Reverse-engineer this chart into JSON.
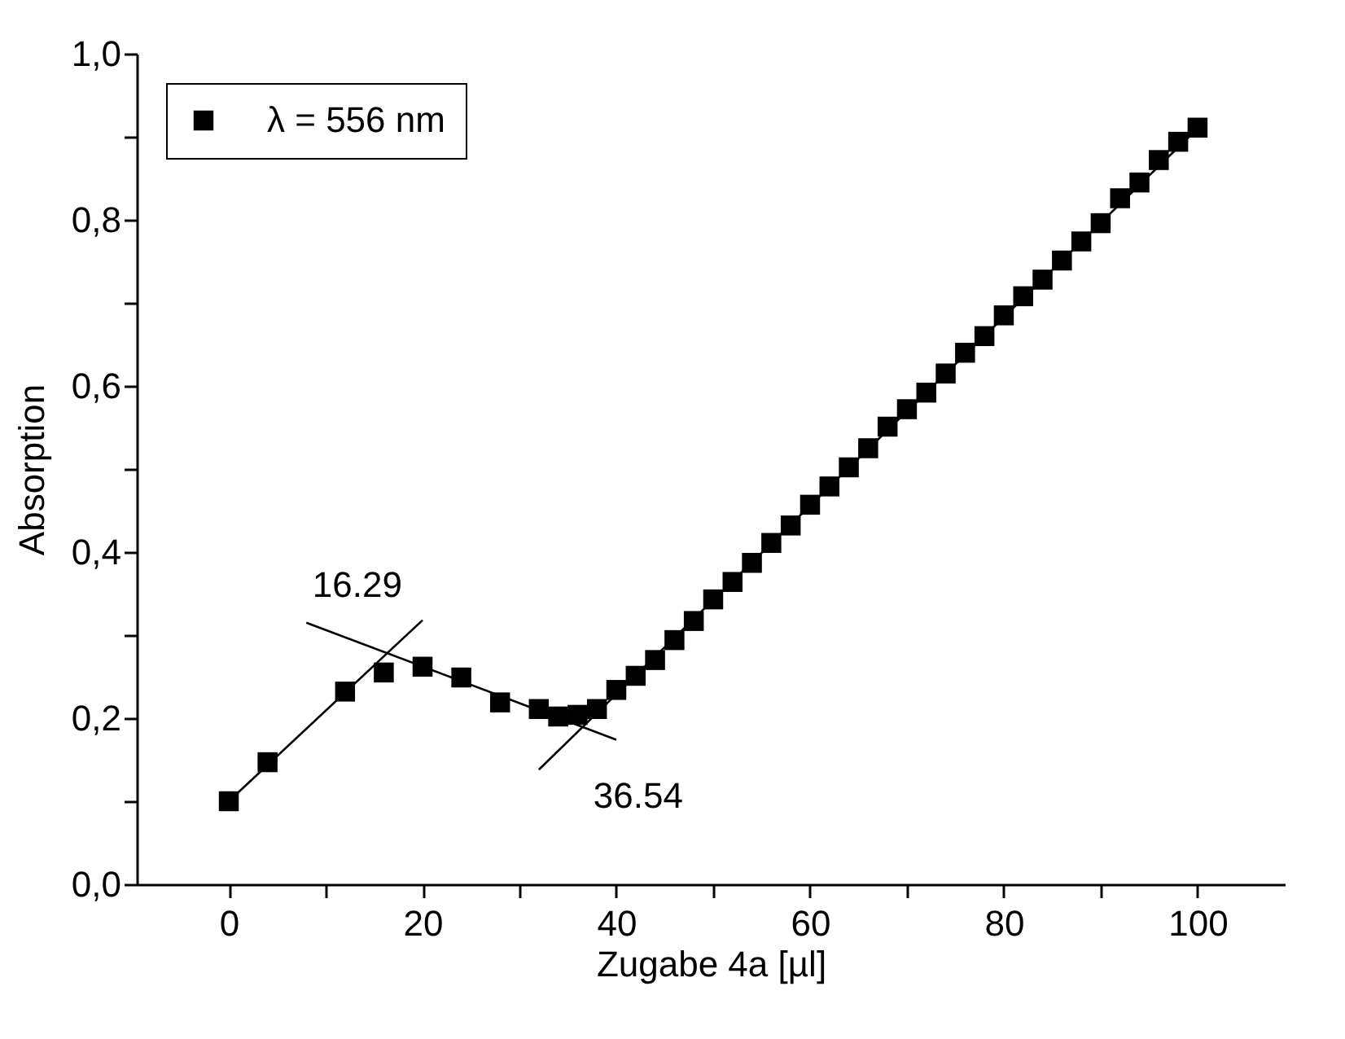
{
  "chart_data": {
    "type": "scatter",
    "xlabel": "Zugabe 4a [µl]",
    "ylabel": "Absorption",
    "xlim": [
      -9.5,
      109
    ],
    "ylim": [
      0,
      1.0
    ],
    "xticks": [
      0,
      {
        "value": 10,
        "label": null
      },
      20,
      {
        "value": 30,
        "label": null
      },
      40,
      {
        "value": 50,
        "label": null
      },
      60,
      {
        "value": 70,
        "label": null
      },
      80,
      {
        "value": 90,
        "label": null
      },
      100
    ],
    "yticks": [
      {
        "value": 0,
        "label": "0,0"
      },
      {
        "value": 0.1,
        "label": null
      },
      {
        "value": 0.2,
        "label": "0,2"
      },
      {
        "value": 0.3,
        "label": null
      },
      {
        "value": 0.4,
        "label": "0,4"
      },
      {
        "value": 0.5,
        "label": null
      },
      {
        "value": 0.6,
        "label": "0,6"
      },
      {
        "value": 0.7,
        "label": null
      },
      {
        "value": 0.8,
        "label": "0,8"
      },
      {
        "value": 0.9,
        "label": null
      },
      {
        "value": 1.0,
        "label": "1,0"
      }
    ],
    "legend": "top left",
    "series": [
      {
        "name": "λ = 556 nm",
        "color": "#000000",
        "marker": "square",
        "x": [
          0,
          4,
          12,
          16,
          20,
          24,
          28,
          32,
          34,
          36,
          38,
          40,
          42,
          44,
          46,
          48,
          50,
          52,
          54,
          56,
          58,
          60,
          62,
          64,
          66,
          68,
          70,
          72,
          74,
          76,
          78,
          80,
          82,
          84,
          86,
          88,
          90,
          92,
          94,
          96,
          98,
          100
        ],
        "values": [
          0.1,
          0.147,
          0.232,
          0.255,
          0.262,
          0.249,
          0.219,
          0.211,
          0.202,
          0.204,
          0.211,
          0.234,
          0.251,
          0.27,
          0.294,
          0.317,
          0.343,
          0.364,
          0.387,
          0.411,
          0.432,
          0.457,
          0.479,
          0.502,
          0.525,
          0.551,
          0.572,
          0.592,
          0.615,
          0.64,
          0.66,
          0.685,
          0.708,
          0.728,
          0.751,
          0.774,
          0.796,
          0.826,
          0.845,
          0.872,
          0.894,
          0.911
        ]
      },
      {
        "type": "line",
        "color": "#000000",
        "marker": "none",
        "x": [
          0,
          20
        ],
        "values": [
          0.1,
          0.318
        ]
      },
      {
        "type": "line",
        "color": "#000000",
        "marker": "none",
        "x": [
          8,
          40
        ],
        "values": [
          0.315,
          0.174
        ]
      },
      {
        "type": "line",
        "color": "#000000",
        "marker": "none",
        "x": [
          32,
          100
        ],
        "values": [
          0.138,
          0.91
        ]
      }
    ],
    "annotations": [
      {
        "text": "16.29",
        "x": 16.29,
        "y": 0.277
      },
      {
        "text": "36.54",
        "x": 36.54,
        "y": 0.192
      }
    ]
  }
}
